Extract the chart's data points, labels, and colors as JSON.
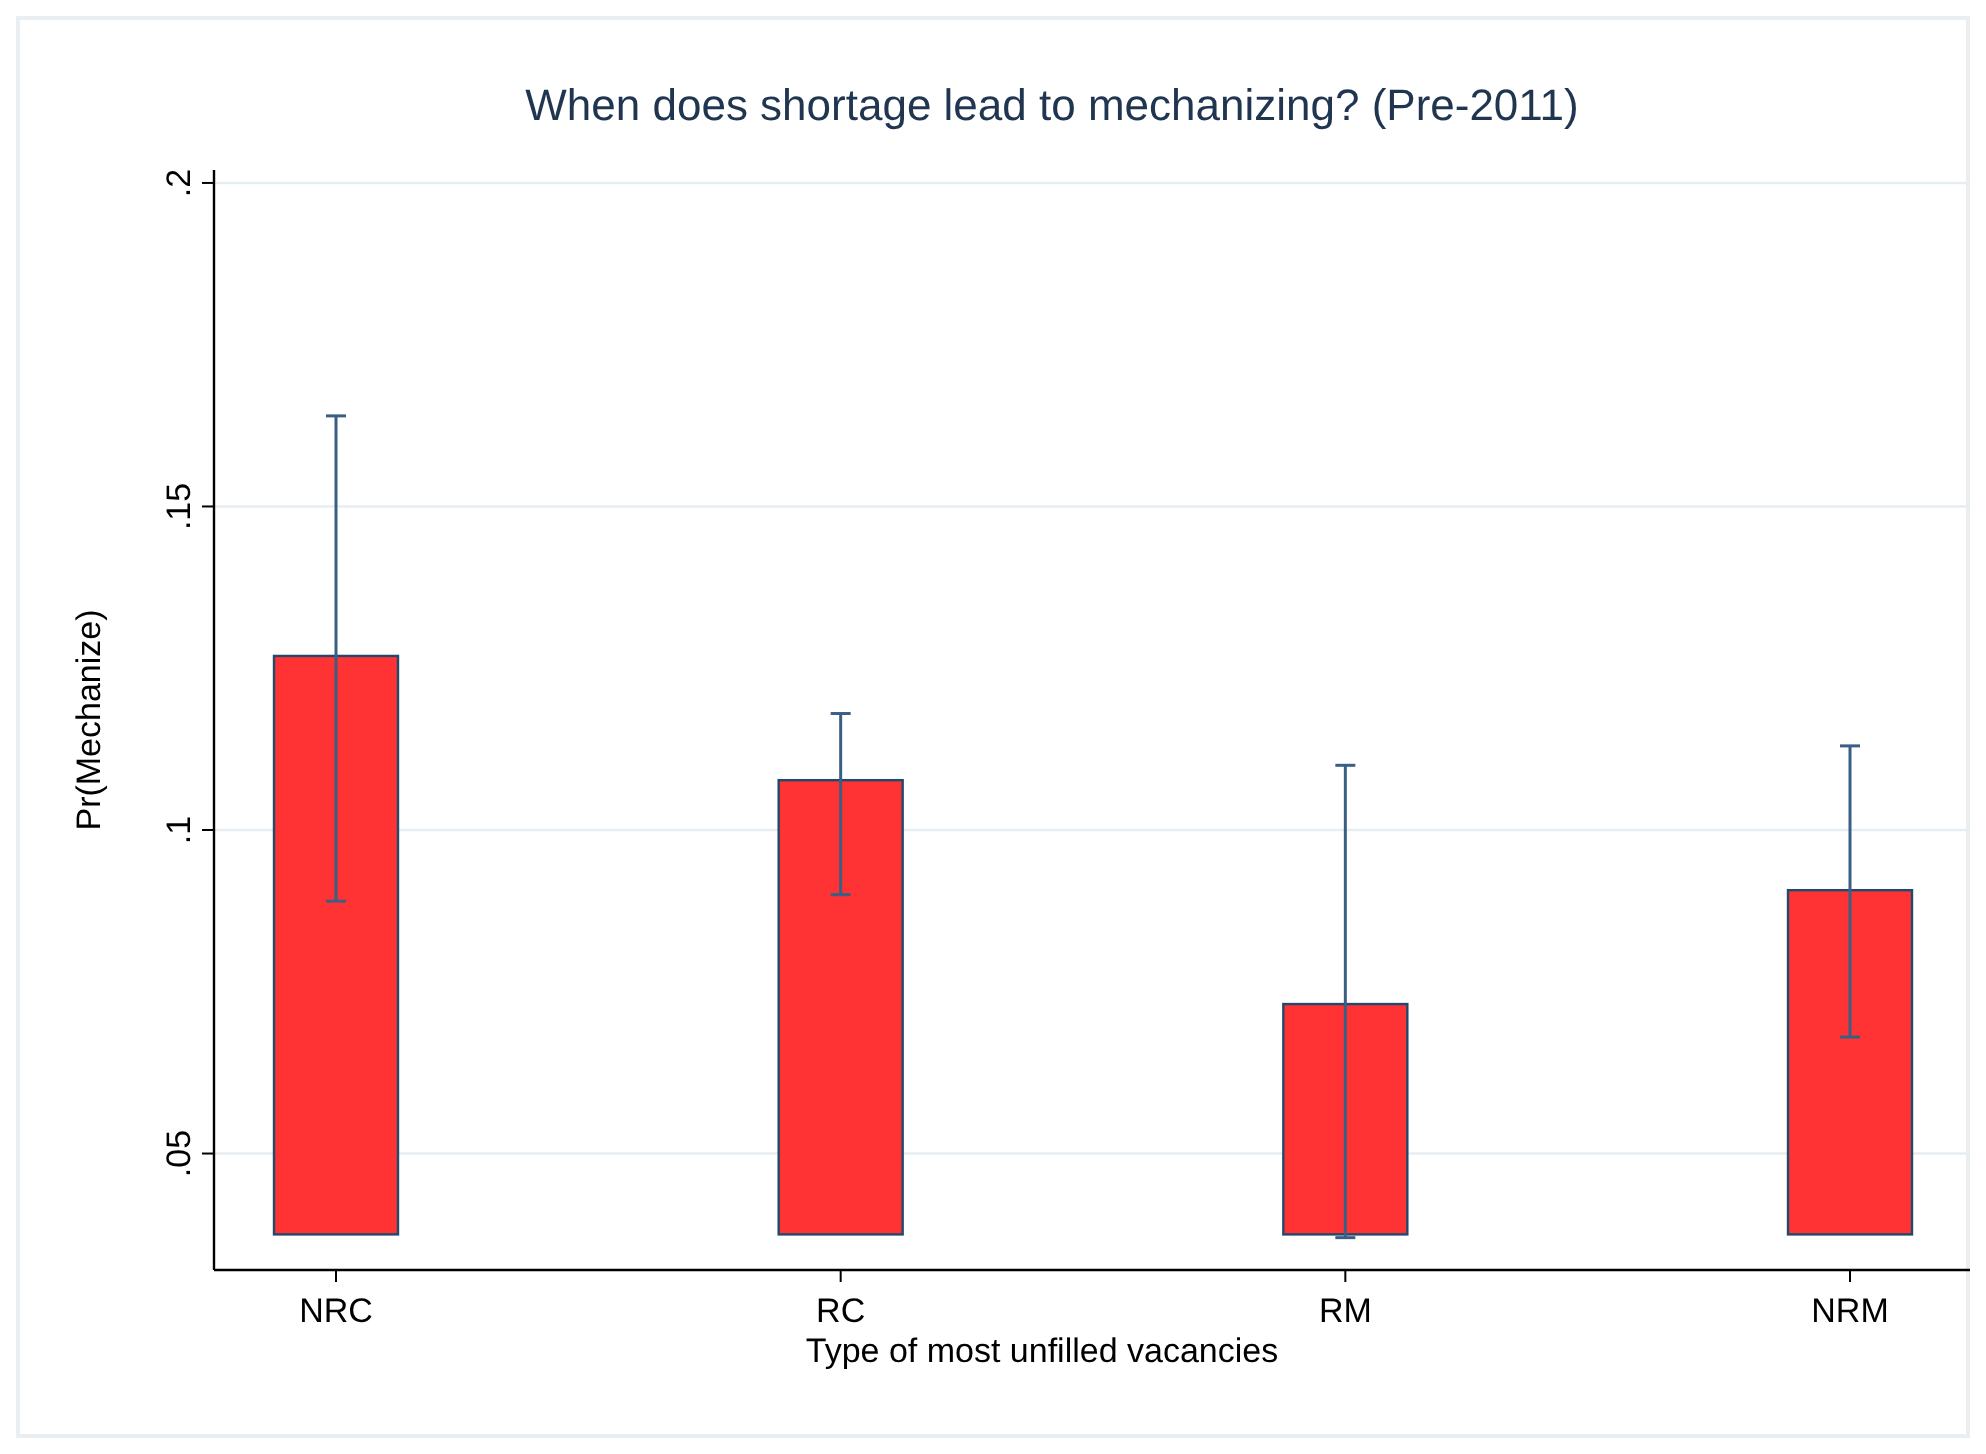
{
  "chart_data": {
    "type": "bar",
    "title": "When does shortage lead to mechanizing? (Pre-2011)",
    "xlabel": "Type of most unfilled vacancies",
    "ylabel": "Pr(Mechanize)",
    "categories": [
      "NRC",
      "RC",
      "RM",
      "NRM"
    ],
    "base": [
      0.0375,
      0.0375,
      0.0375,
      0.0375
    ],
    "values": [
      0.0894,
      0.0702,
      0.0356,
      0.0532
    ],
    "errors": [
      [
        0.089,
        0.164
      ],
      [
        0.09,
        0.118
      ],
      [
        0.037,
        0.11
      ],
      [
        0.068,
        0.113
      ]
    ],
    "color": "#ff3333",
    "ylim": [
      0.032,
      0.202
    ],
    "yticks": [
      {
        "value": 0.05,
        "label": ".05"
      },
      {
        "value": 0.1,
        "label": ".1"
      },
      {
        "value": 0.15,
        "label": ".15"
      },
      {
        "value": 0.2,
        "label": ".2"
      }
    ],
    "grid": "y"
  }
}
